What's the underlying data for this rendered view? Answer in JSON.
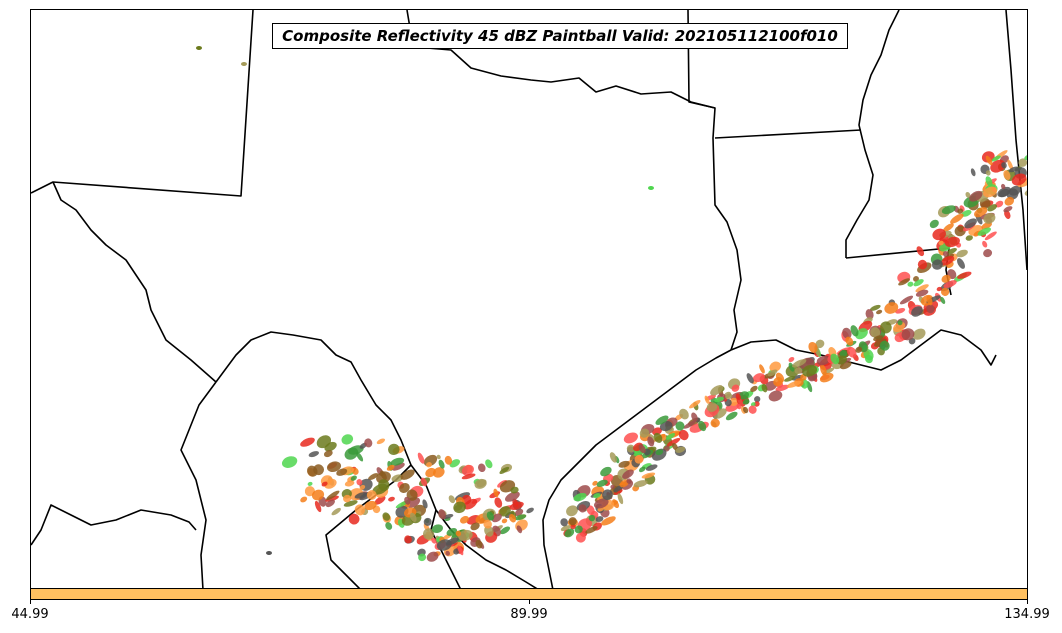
{
  "title": "Composite Reflectivity 45 dBZ Paintball Valid: 202105112100f010",
  "colorbar": {
    "color": "#ffc060",
    "ticks": [
      "44.99",
      "89.99",
      "134.99"
    ]
  },
  "paintball_colors": [
    "#e8291f",
    "#f57e1a",
    "#ff9a40",
    "#8a5a1e",
    "#6b7a1c",
    "#a49a58",
    "#3a9a3a",
    "#4fd64f",
    "#9e4b4b",
    "#555555",
    "#ff5050"
  ]
}
